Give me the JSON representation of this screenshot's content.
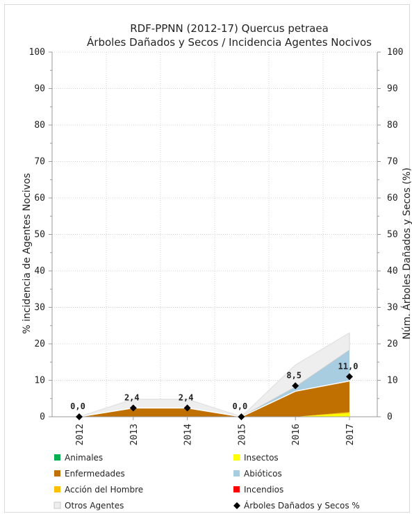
{
  "chart_data": {
    "type": "area",
    "title": "RDF-PPNN (2012-17) Quercus petraea",
    "subtitle": "Árboles Dañados y Secos / Incidencia Agentes Nocivos",
    "ylabel": "% incidencia de Agentes Nocivos",
    "y2label": "Núm. Árboles Dañados y Secos (%)",
    "ylim": [
      0,
      100
    ],
    "y2lim": [
      0,
      100
    ],
    "yticks": [
      "0",
      "10",
      "20",
      "30",
      "40",
      "50",
      "60",
      "70",
      "80",
      "90",
      "100"
    ],
    "categories": [
      "2012",
      "2013",
      "2014",
      "2015",
      "2016",
      "2017"
    ],
    "grid": true,
    "stack_order": [
      "Animales",
      "Insectos",
      "Acción del Hombre",
      "Incendios",
      "Enfermedades",
      "Abióticos",
      "Otros Agentes"
    ],
    "series": [
      {
        "name": "Animales",
        "color": "#00b050",
        "values": [
          0,
          0,
          0,
          0,
          0,
          0
        ]
      },
      {
        "name": "Insectos",
        "color": "#ffff00",
        "values": [
          0,
          0,
          0,
          0,
          0,
          1.0
        ]
      },
      {
        "name": "Enfermedades",
        "color": "#c07000",
        "values": [
          0,
          2.4,
          2.4,
          0,
          7.0,
          8.5
        ]
      },
      {
        "name": "Abióticos",
        "color": "#a9cde0",
        "values": [
          0,
          0,
          0,
          0,
          1.2,
          8.5
        ]
      },
      {
        "name": "Acción del Hombre",
        "color": "#ffc000",
        "values": [
          0,
          0,
          0,
          0,
          0,
          0.3
        ]
      },
      {
        "name": "Incendios",
        "color": "#ff0000",
        "values": [
          0,
          0,
          0,
          0,
          0,
          0
        ]
      },
      {
        "name": "Otros Agentes",
        "color": "#eeeeee",
        "values": [
          0,
          2.4,
          2.4,
          0,
          6.0,
          4.7
        ]
      }
    ],
    "line_series": {
      "name": "Árboles Dañados y Secos %",
      "color": "#000000",
      "marker": "diamond",
      "values": [
        0,
        2.4,
        2.4,
        0,
        8.5,
        11.0
      ],
      "labels": [
        "0,0",
        "2,4",
        "2,4",
        "0,0",
        "8,5",
        "11,0"
      ]
    },
    "legend_position": "bottom",
    "legend": [
      {
        "name": "Animales",
        "color": "#00b050",
        "marker": "square"
      },
      {
        "name": "Insectos",
        "color": "#ffff00",
        "marker": "square"
      },
      {
        "name": "Enfermedades",
        "color": "#c07000",
        "marker": "square"
      },
      {
        "name": "Abióticos",
        "color": "#a9cde0",
        "marker": "square"
      },
      {
        "name": "Acción del Hombre",
        "color": "#ffc000",
        "marker": "square"
      },
      {
        "name": "Incendios",
        "color": "#ff0000",
        "marker": "square"
      },
      {
        "name": "Otros Agentes",
        "color": "#eeeeee",
        "marker": "square"
      },
      {
        "name": "Árboles Dañados y Secos %",
        "color": "#000000",
        "marker": "diamond"
      }
    ]
  }
}
